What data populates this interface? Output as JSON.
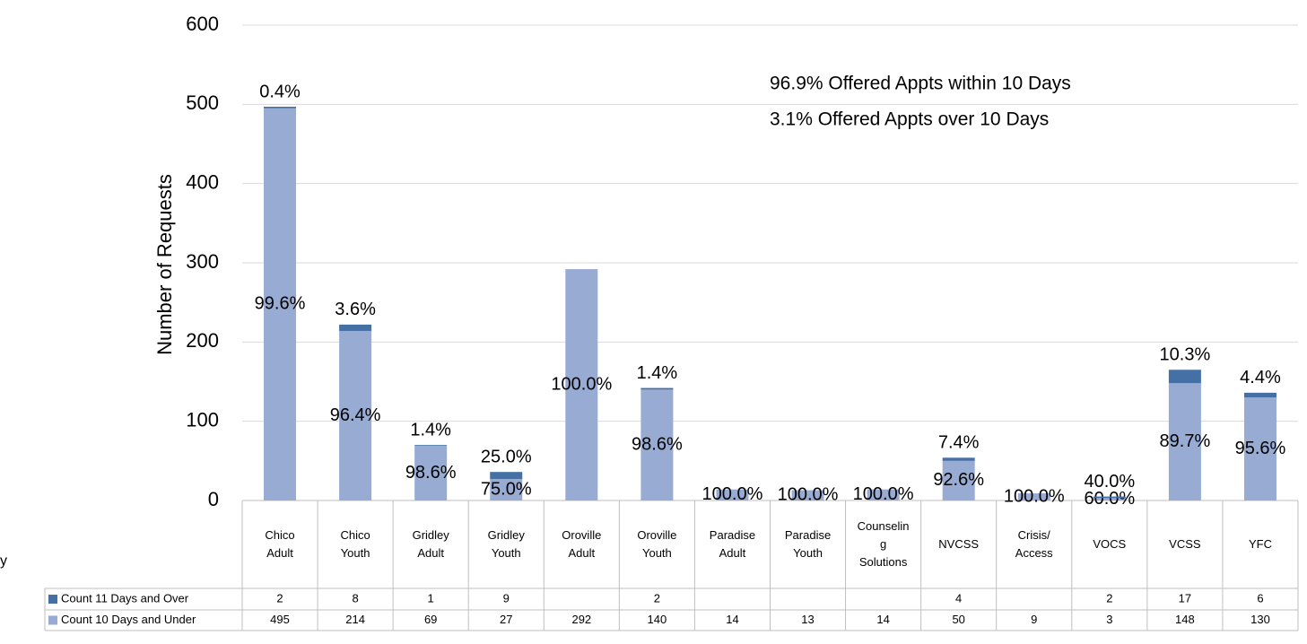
{
  "chart_data": {
    "type": "bar",
    "stacked": true,
    "y_label": "Number of Requests",
    "annotations": [
      "96.9% Offered Appts within 10 Days",
      "3.1% Offered Appts over 10 Days"
    ],
    "side_text": "y",
    "categories": [
      "Chico Adult",
      "Chico Youth",
      "Gridley Adult",
      "Gridley Youth",
      "Oroville Adult",
      "Oroville Youth",
      "Paradise Adult",
      "Paradise Youth",
      "Counseling Solutions",
      "NVCSS",
      "Crisis/ Access",
      "VOCS",
      "VCSS",
      "YFC"
    ],
    "series": [
      {
        "name": "Count 10 Days and Under",
        "color": "#97abd3",
        "values": [
          495,
          214,
          69,
          27,
          292,
          140,
          14,
          13,
          14,
          50,
          9,
          3,
          148,
          130
        ],
        "percent_labels": [
          "99.6%",
          "96.4%",
          "98.6%",
          "75.0%",
          "100.0%",
          "98.6%",
          "100.0%",
          "100.0%",
          "100.0%",
          "92.6%",
          "100.0%",
          "60.0%",
          "89.7%",
          "95.6%"
        ]
      },
      {
        "name": "Count 11 Days and Over",
        "color": "#4470a5",
        "values": [
          2,
          8,
          1,
          9,
          null,
          2,
          null,
          null,
          null,
          4,
          null,
          2,
          17,
          6
        ],
        "percent_labels": [
          "0.4%",
          "3.6%",
          "1.4%",
          "25.0%",
          null,
          "1.4%",
          null,
          null,
          null,
          "7.4%",
          null,
          "40.0%",
          "10.3%",
          "4.4%"
        ]
      }
    ],
    "ylim": [
      0,
      600
    ],
    "yticks": [
      0,
      100,
      200,
      300,
      400,
      500,
      600
    ],
    "grid": true
  }
}
